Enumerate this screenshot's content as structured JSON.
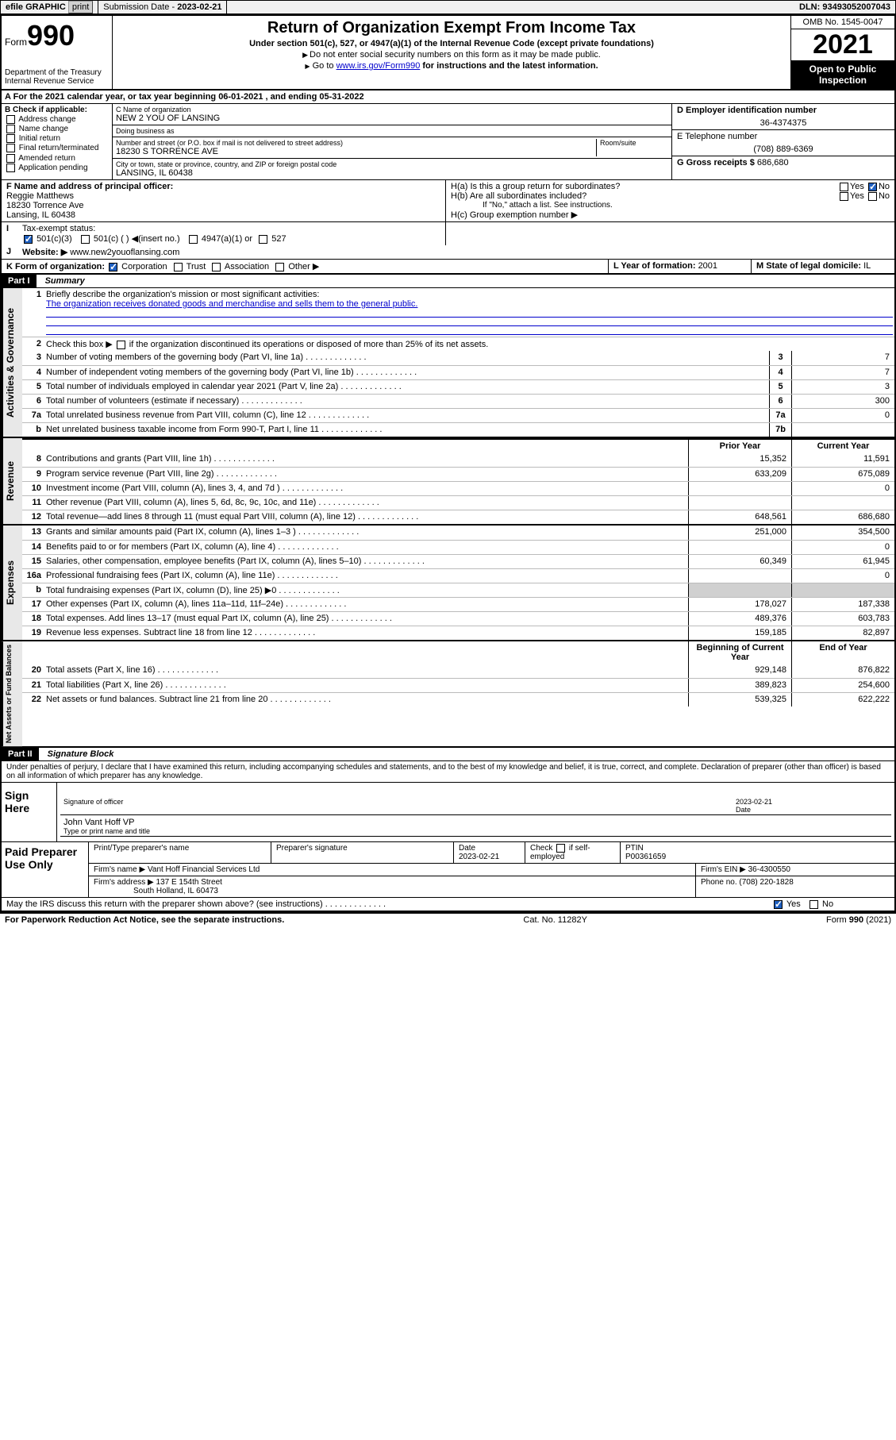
{
  "topbar": {
    "efile": "efile GRAPHIC",
    "print": "print",
    "sub_label": "Submission Date - ",
    "sub_date": "2023-02-21",
    "dln_label": "DLN: ",
    "dln": "93493052007043"
  },
  "header": {
    "form_prefix": "Form",
    "form_no": "990",
    "dept": "Department of the Treasury",
    "irs": "Internal Revenue Service",
    "title": "Return of Organization Exempt From Income Tax",
    "sub": "Under section 501(c), 527, or 4947(a)(1) of the Internal Revenue Code (except private foundations)",
    "note1": "Do not enter social security numbers on this form as it may be made public.",
    "note2_pre": "Go to ",
    "note2_link": "www.irs.gov/Form990",
    "note2_post": " for instructions and the latest information.",
    "omb": "OMB No. 1545-0047",
    "year": "2021",
    "open": "Open to Public Inspection"
  },
  "rowA": {
    "text": "A For the 2021 calendar year, or tax year beginning 06-01-2021   , and ending 05-31-2022"
  },
  "boxB": {
    "title": "B Check if applicable:",
    "opts": [
      "Address change",
      "Name change",
      "Initial return",
      "Final return/terminated",
      "Amended return",
      "Application pending"
    ]
  },
  "boxC": {
    "name_lbl": "C Name of organization",
    "name": "NEW 2 YOU OF LANSING",
    "dba_lbl": "Doing business as",
    "dba": "",
    "street_lbl": "Number and street (or P.O. box if mail is not delivered to street address)",
    "room_lbl": "Room/suite",
    "street": "18230 S TORRENCE AVE",
    "city_lbl": "City or town, state or province, country, and ZIP or foreign postal code",
    "city": "LANSING, IL  60438"
  },
  "boxDE": {
    "d_lbl": "D Employer identification number",
    "ein": "36-4374375",
    "e_lbl": "E Telephone number",
    "phone": "(708) 889-6369",
    "g_lbl": "G Gross receipts $ ",
    "gross": "686,680"
  },
  "rowF": {
    "f_lbl": "F Name and address of principal officer:",
    "name": "Reggie Matthews",
    "addr1": "18230 Torrence Ave",
    "addr2": "Lansing, IL  60438",
    "ha": "H(a)  Is this a group return for subordinates?",
    "hb": "H(b)  Are all subordinates included?",
    "hb_note": "If \"No,\" attach a list. See instructions.",
    "hc": "H(c)  Group exemption number ▶",
    "yes": "Yes",
    "no": "No"
  },
  "rowI": {
    "lbl": "Tax-exempt status:",
    "o1": "501(c)(3)",
    "o2": "501(c) (  ) ◀(insert no.)",
    "o3": "4947(a)(1) or",
    "o4": "527"
  },
  "rowJ": {
    "lbl": "Website: ▶",
    "val": "www.new2youoflansing.com"
  },
  "rowK": {
    "lbl": "K Form of organization:",
    "o1": "Corporation",
    "o2": "Trust",
    "o3": "Association",
    "o4": "Other ▶",
    "l_lbl": "L Year of formation: ",
    "l_val": "2001",
    "m_lbl": "M State of legal domicile: ",
    "m_val": "IL"
  },
  "part1": {
    "hdr": "Part I",
    "title": "Summary",
    "q1_lbl": "Briefly describe the organization's mission or most significant activities:",
    "q1_val": "The organization receives donated goods and merchandise and sells them to the general public.",
    "q2": "Check this box ▶       if the organization discontinued its operations or disposed of more than 25% of its net assets.",
    "lines_gov": [
      {
        "n": "3",
        "d": "Number of voting members of the governing body (Part VI, line 1a)",
        "box": "3",
        "v": "7"
      },
      {
        "n": "4",
        "d": "Number of independent voting members of the governing body (Part VI, line 1b)",
        "box": "4",
        "v": "7"
      },
      {
        "n": "5",
        "d": "Total number of individuals employed in calendar year 2021 (Part V, line 2a)",
        "box": "5",
        "v": "3"
      },
      {
        "n": "6",
        "d": "Total number of volunteers (estimate if necessary)",
        "box": "6",
        "v": "300"
      },
      {
        "n": "7a",
        "d": "Total unrelated business revenue from Part VIII, column (C), line 12",
        "box": "7a",
        "v": "0"
      },
      {
        "n": "b",
        "d": "Net unrelated business taxable income from Form 990-T, Part I, line 11",
        "box": "7b",
        "v": ""
      }
    ],
    "col_prior": "Prior Year",
    "col_curr": "Current Year",
    "rev": [
      {
        "n": "8",
        "d": "Contributions and grants (Part VIII, line 1h)",
        "p": "15,352",
        "c": "11,591"
      },
      {
        "n": "9",
        "d": "Program service revenue (Part VIII, line 2g)",
        "p": "633,209",
        "c": "675,089"
      },
      {
        "n": "10",
        "d": "Investment income (Part VIII, column (A), lines 3, 4, and 7d )",
        "p": "",
        "c": "0"
      },
      {
        "n": "11",
        "d": "Other revenue (Part VIII, column (A), lines 5, 6d, 8c, 9c, 10c, and 11e)",
        "p": "",
        "c": ""
      },
      {
        "n": "12",
        "d": "Total revenue—add lines 8 through 11 (must equal Part VIII, column (A), line 12)",
        "p": "648,561",
        "c": "686,680"
      }
    ],
    "exp": [
      {
        "n": "13",
        "d": "Grants and similar amounts paid (Part IX, column (A), lines 1–3 )",
        "p": "251,000",
        "c": "354,500"
      },
      {
        "n": "14",
        "d": "Benefits paid to or for members (Part IX, column (A), line 4)",
        "p": "",
        "c": "0"
      },
      {
        "n": "15",
        "d": "Salaries, other compensation, employee benefits (Part IX, column (A), lines 5–10)",
        "p": "60,349",
        "c": "61,945"
      },
      {
        "n": "16a",
        "d": "Professional fundraising fees (Part IX, column (A), line 11e)",
        "p": "",
        "c": "0"
      },
      {
        "n": "b",
        "d": "Total fundraising expenses (Part IX, column (D), line 25) ▶0",
        "p": "shade",
        "c": "shade"
      },
      {
        "n": "17",
        "d": "Other expenses (Part IX, column (A), lines 11a–11d, 11f–24e)",
        "p": "178,027",
        "c": "187,338"
      },
      {
        "n": "18",
        "d": "Total expenses. Add lines 13–17 (must equal Part IX, column (A), line 25)",
        "p": "489,376",
        "c": "603,783"
      },
      {
        "n": "19",
        "d": "Revenue less expenses. Subtract line 18 from line 12",
        "p": "159,185",
        "c": "82,897"
      }
    ],
    "col_beg": "Beginning of Current Year",
    "col_end": "End of Year",
    "net": [
      {
        "n": "20",
        "d": "Total assets (Part X, line 16)",
        "p": "929,148",
        "c": "876,822"
      },
      {
        "n": "21",
        "d": "Total liabilities (Part X, line 26)",
        "p": "389,823",
        "c": "254,600"
      },
      {
        "n": "22",
        "d": "Net assets or fund balances. Subtract line 21 from line 20",
        "p": "539,325",
        "c": "622,222"
      }
    ],
    "tab_gov": "Activities & Governance",
    "tab_rev": "Revenue",
    "tab_exp": "Expenses",
    "tab_net": "Net Assets or Fund Balances"
  },
  "part2": {
    "hdr": "Part II",
    "title": "Signature Block",
    "decl": "Under penalties of perjury, I declare that I have examined this return, including accompanying schedules and statements, and to the best of my knowledge and belief, it is true, correct, and complete. Declaration of preparer (other than officer) is based on all information of which preparer has any knowledge.",
    "sign_here": "Sign Here",
    "sig_officer": "Signature of officer",
    "sig_date_lbl": "Date",
    "sig_date": "2023-02-21",
    "sig_name": "John Vant Hoff VP",
    "sig_name_lbl": "Type or print name and title",
    "paid": "Paid Preparer Use Only",
    "prep_name_lbl": "Print/Type preparer's name",
    "prep_sig_lbl": "Preparer's signature",
    "prep_date_lbl": "Date",
    "prep_date": "2023-02-21",
    "prep_check": "Check       if self-employed",
    "ptin_lbl": "PTIN",
    "ptin": "P00361659",
    "firm_name_lbl": "Firm's name   ▶",
    "firm_name": "Vant Hoff Financial Services Ltd",
    "firm_ein_lbl": "Firm's EIN ▶",
    "firm_ein": "36-4300550",
    "firm_addr_lbl": "Firm's address ▶",
    "firm_addr1": "137 E 154th Street",
    "firm_addr2": "South Holland, IL  60473",
    "firm_phone_lbl": "Phone no. ",
    "firm_phone": "(708) 220-1828",
    "discuss": "May the IRS discuss this return with the preparer shown above? (see instructions)",
    "yes": "Yes",
    "no": "No"
  },
  "footer": {
    "pra": "For Paperwork Reduction Act Notice, see the separate instructions.",
    "cat": "Cat. No. 11282Y",
    "form": "Form 990 (2021)"
  }
}
